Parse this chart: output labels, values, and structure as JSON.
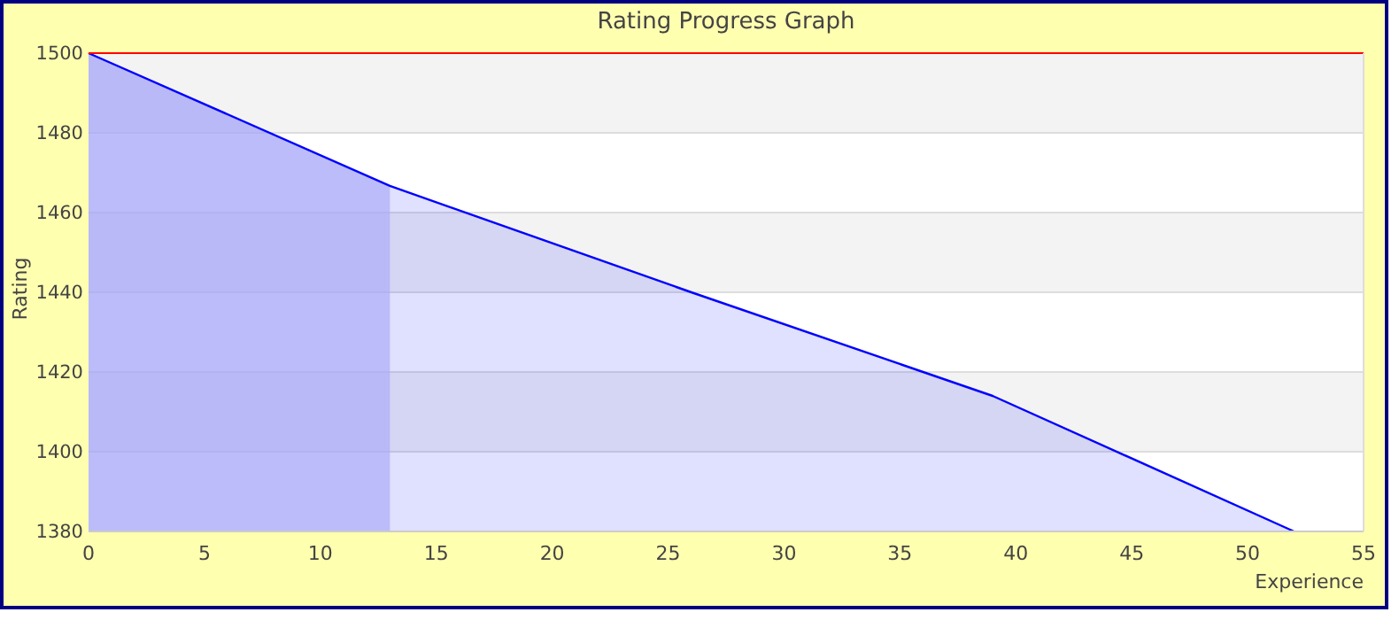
{
  "chart_data": {
    "type": "area",
    "title": "Rating Progress Graph",
    "xlabel": "Experience",
    "ylabel": "Rating",
    "x": [
      0,
      13,
      26,
      39,
      52
    ],
    "series": [
      {
        "color": "#0000ff",
        "values": [
          1500,
          1466.7,
          1440,
          1414,
          1380
        ]
      }
    ],
    "xlim": [
      0,
      55
    ],
    "xticks": [
      0,
      5,
      10,
      15,
      20,
      25,
      30,
      35,
      40,
      45,
      50,
      55
    ],
    "ylim": [
      1380,
      1500
    ],
    "yticks": [
      1380,
      1400,
      1420,
      1440,
      1460,
      1480,
      1500
    ],
    "grid": "y",
    "ref_lines": [
      {
        "axis": "y",
        "value": 1500,
        "color": "#ff0000"
      }
    ],
    "bands": [
      {
        "axis": "x",
        "from": 0,
        "to": 13,
        "color": "#c4c4fa"
      }
    ]
  }
}
